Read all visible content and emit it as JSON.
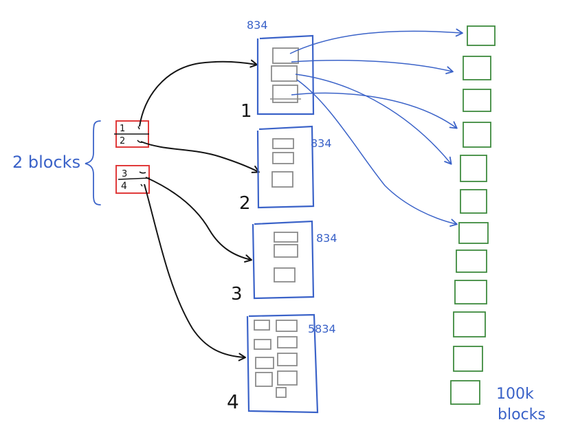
{
  "colors": {
    "red": "#e03a3a",
    "blue": "#3a62c8",
    "green": "#3e8a3e",
    "black": "#151515",
    "gray": "#8a8a8a"
  },
  "left_label": "2 blocks",
  "index_block_top": {
    "entries": [
      "1",
      "2"
    ]
  },
  "index_block_bottom": {
    "entries": [
      "3",
      "4"
    ]
  },
  "middle_blocks": [
    {
      "number": "1",
      "count": "834"
    },
    {
      "number": "2",
      "count": "834"
    },
    {
      "number": "3",
      "count": "834"
    },
    {
      "number": "4",
      "count": "5834"
    }
  ],
  "right_label_line1": "100k",
  "right_label_line2": "blocks"
}
